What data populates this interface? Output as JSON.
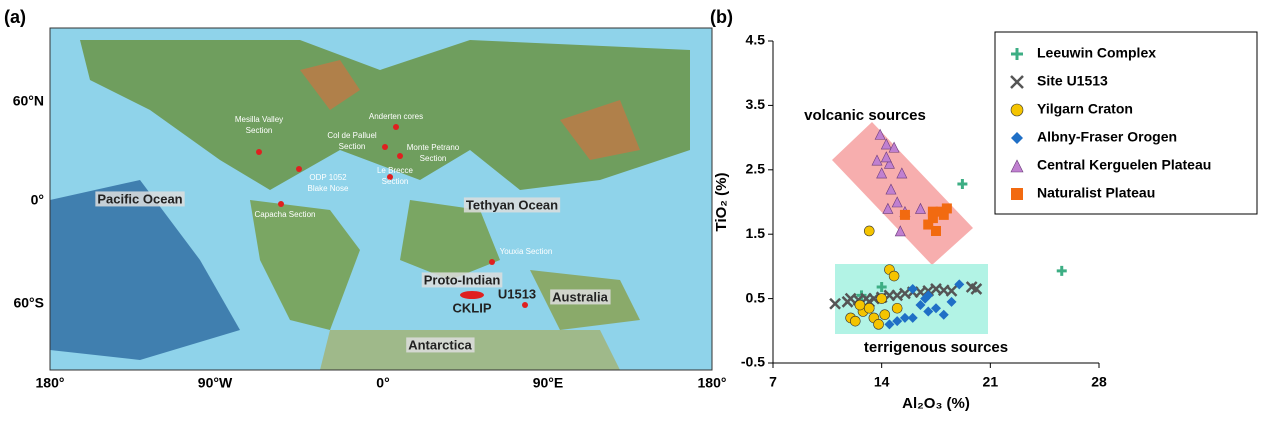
{
  "map": {
    "panel_label": "(a)",
    "xticks": [
      "180°",
      "90°W",
      "0°",
      "90°E",
      "180°"
    ],
    "yticks": [
      "60°N",
      "0°",
      "60°S"
    ],
    "places": [
      {
        "lines": [
          "Mesilla Valley",
          "Section"
        ]
      },
      {
        "lines": [
          "ODP 1052",
          "Blake Nose"
        ]
      },
      {
        "lines": [
          "Anderten cores"
        ]
      },
      {
        "lines": [
          "Col de Palluel",
          "Section"
        ]
      },
      {
        "lines": [
          "Monte Petrano",
          "Section"
        ]
      },
      {
        "lines": [
          "Le Brecce",
          "Section"
        ]
      },
      {
        "lines": [
          "Capacha Section"
        ]
      },
      {
        "lines": [
          "Youxia Section"
        ]
      },
      {
        "lines": [
          "CKLIP"
        ]
      },
      {
        "lines": [
          "U1513"
        ]
      }
    ],
    "regions": [
      "Pacific Ocean",
      "Tethyan Ocean",
      "Proto-Indian",
      "Australia",
      "Antarctica"
    ]
  },
  "chart_data": {
    "type": "scatter",
    "panel_label": "(b)",
    "x_label": "Al₂O₃ (%)",
    "y_label": "TiO₂ (%)",
    "xlim": [
      7,
      28
    ],
    "xticks": [
      7,
      14,
      21,
      28
    ],
    "ylim": [
      -0.5,
      4.5
    ],
    "yticks": [
      4.5,
      3.5,
      2.5,
      1.5,
      0.5,
      -0.5
    ],
    "annotations": [
      "volcanic sources",
      "terrigenous sources"
    ],
    "series": [
      {
        "name": "Leeuwin Complex",
        "color": "#3dae84",
        "marker": "plus",
        "x": [
          19.2,
          25.6,
          14.0,
          12.7
        ],
        "values": [
          2.28,
          0.93,
          0.68,
          0.55
        ]
      },
      {
        "name": "Site U1513",
        "color": "#555555",
        "marker": "x",
        "x": [
          11.0,
          11.8,
          12.0,
          12.5,
          13.0,
          13.2,
          13.5,
          14.0,
          14.5,
          15.0,
          15.5,
          16.0,
          16.5,
          17.0,
          17.5,
          18.0,
          18.5,
          19.8,
          20.1
        ],
        "values": [
          0.42,
          0.45,
          0.5,
          0.48,
          0.5,
          0.45,
          0.5,
          0.52,
          0.55,
          0.55,
          0.58,
          0.6,
          0.6,
          0.62,
          0.65,
          0.63,
          0.62,
          0.68,
          0.65
        ]
      },
      {
        "name": "Yilgarn Craton",
        "color": "#f5c400",
        "marker": "circle",
        "x": [
          13.2,
          14.5,
          14.8,
          12.0,
          12.3,
          12.8,
          13.5,
          14.0,
          13.8,
          14.2,
          12.6,
          15.0,
          13.2
        ],
        "values": [
          1.55,
          0.95,
          0.85,
          0.2,
          0.15,
          0.3,
          0.2,
          0.5,
          0.1,
          0.25,
          0.4,
          0.35,
          0.35
        ]
      },
      {
        "name": "Albny-Fraser Orogen",
        "color": "#1f6fc6",
        "marker": "diamond",
        "x": [
          15.0,
          15.5,
          16.0,
          16.5,
          17.0,
          17.5,
          18.0,
          18.5,
          16.0,
          17.0,
          19.0,
          14.5,
          16.8
        ],
        "values": [
          0.15,
          0.2,
          0.2,
          0.4,
          0.3,
          0.35,
          0.25,
          0.45,
          0.65,
          0.55,
          0.72,
          0.1,
          0.5
        ]
      },
      {
        "name": "Central Kerguelen Plateau",
        "color": "#c080d0",
        "marker": "triangle",
        "x": [
          13.9,
          14.3,
          14.8,
          13.7,
          14.5,
          14.0,
          15.3,
          14.6,
          15.0,
          15.5,
          14.4,
          16.5,
          15.2,
          14.3
        ],
        "values": [
          3.05,
          2.9,
          2.85,
          2.65,
          2.6,
          2.45,
          2.45,
          2.2,
          2.0,
          1.85,
          1.9,
          1.9,
          1.55,
          2.7
        ]
      },
      {
        "name": "Naturalist Plateau",
        "color": "#f26a10",
        "marker": "square",
        "x": [
          15.5,
          17.3,
          17.8,
          18.2,
          17.0,
          17.5,
          18.0,
          17.3
        ],
        "values": [
          1.8,
          1.75,
          1.85,
          1.9,
          1.65,
          1.55,
          1.8,
          1.85
        ]
      }
    ]
  }
}
